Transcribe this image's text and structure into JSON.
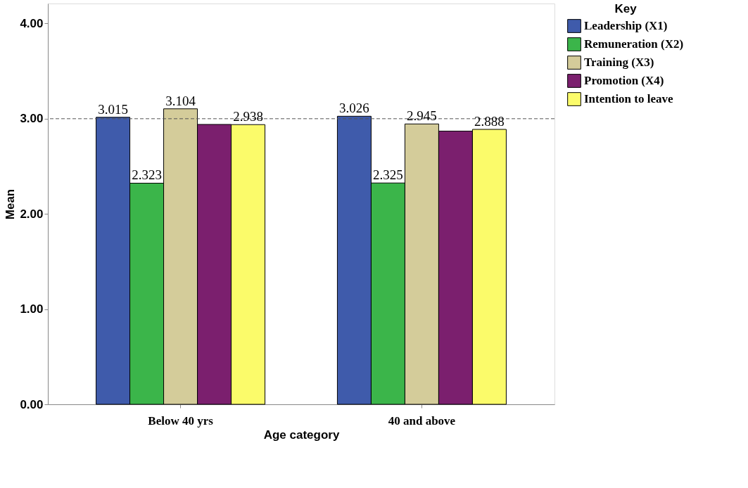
{
  "chart_data": {
    "type": "bar",
    "xlabel": "Age category",
    "ylabel": "Mean",
    "legend_title": "Key",
    "legend": "top right",
    "grid": false,
    "categories": [
      "Below 40 yrs",
      "40 and above"
    ],
    "series": [
      {
        "name": "Leadership (X1)",
        "color": "#3f5bab",
        "values": [
          3.015,
          3.026
        ],
        "value_labels": [
          "3.015",
          "3.026"
        ]
      },
      {
        "name": "Remuneration (X2)",
        "color": "#3bb54a",
        "values": [
          2.323,
          2.325
        ],
        "value_labels": [
          "2.323",
          "2.325"
        ]
      },
      {
        "name": "Training (X3)",
        "color": "#d4cc9a",
        "values": [
          3.104,
          2.945
        ],
        "value_labels": [
          "3.104",
          "2.945"
        ]
      },
      {
        "name": "Promotion (X4)",
        "color": "#7b1f6e",
        "values": [
          2.94,
          2.87
        ],
        "value_labels": [
          null,
          null
        ]
      },
      {
        "name": "Intention to leave",
        "color": "#fbfb6a",
        "values": [
          2.938,
          2.888
        ],
        "value_labels": [
          "2.938",
          "2.888"
        ]
      }
    ],
    "ylim": [
      0,
      4.21
    ],
    "yticks": [
      {
        "value": 0,
        "label": "0.00"
      },
      {
        "value": 1,
        "label": "1.00"
      },
      {
        "value": 2,
        "label": "2.00"
      },
      {
        "value": 3,
        "label": "3.00"
      },
      {
        "value": 4,
        "label": "4.00"
      }
    ],
    "ref_lines": [
      {
        "axis": "y",
        "value": 3,
        "line_style": "dashed",
        "color": "#555555"
      }
    ]
  }
}
